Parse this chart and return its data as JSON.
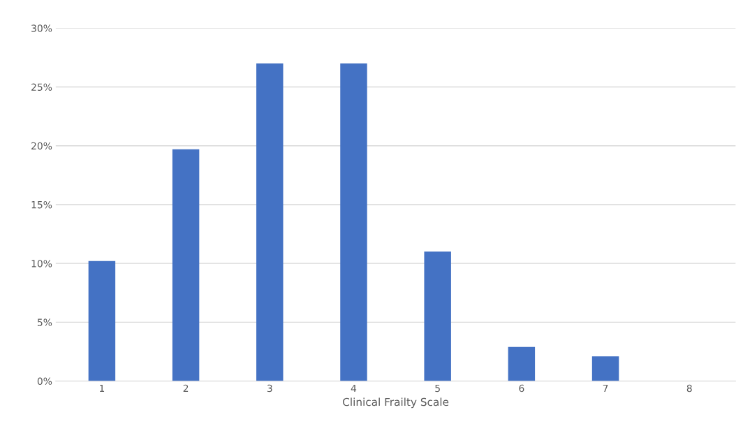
{
  "chart_data": {
    "type": "bar",
    "xlabel": "Clinical Frailty Scale",
    "categories": [
      "1",
      "2",
      "3",
      "4",
      "5",
      "6",
      "7",
      "8"
    ],
    "values": [
      10.2,
      19.7,
      27.0,
      27.0,
      11.0,
      2.9,
      2.1,
      0
    ],
    "color": "#4472c4",
    "ylim": [
      0,
      30
    ],
    "yticks": [
      {
        "value": 0,
        "label": "0%"
      },
      {
        "value": 5,
        "label": "5%"
      },
      {
        "value": 10,
        "label": "10%"
      },
      {
        "value": 15,
        "label": "15%"
      },
      {
        "value": 20,
        "label": "20%"
      },
      {
        "value": 25,
        "label": "25%"
      },
      {
        "value": 30,
        "label": "30%"
      }
    ],
    "grid": "y",
    "legend": false
  }
}
